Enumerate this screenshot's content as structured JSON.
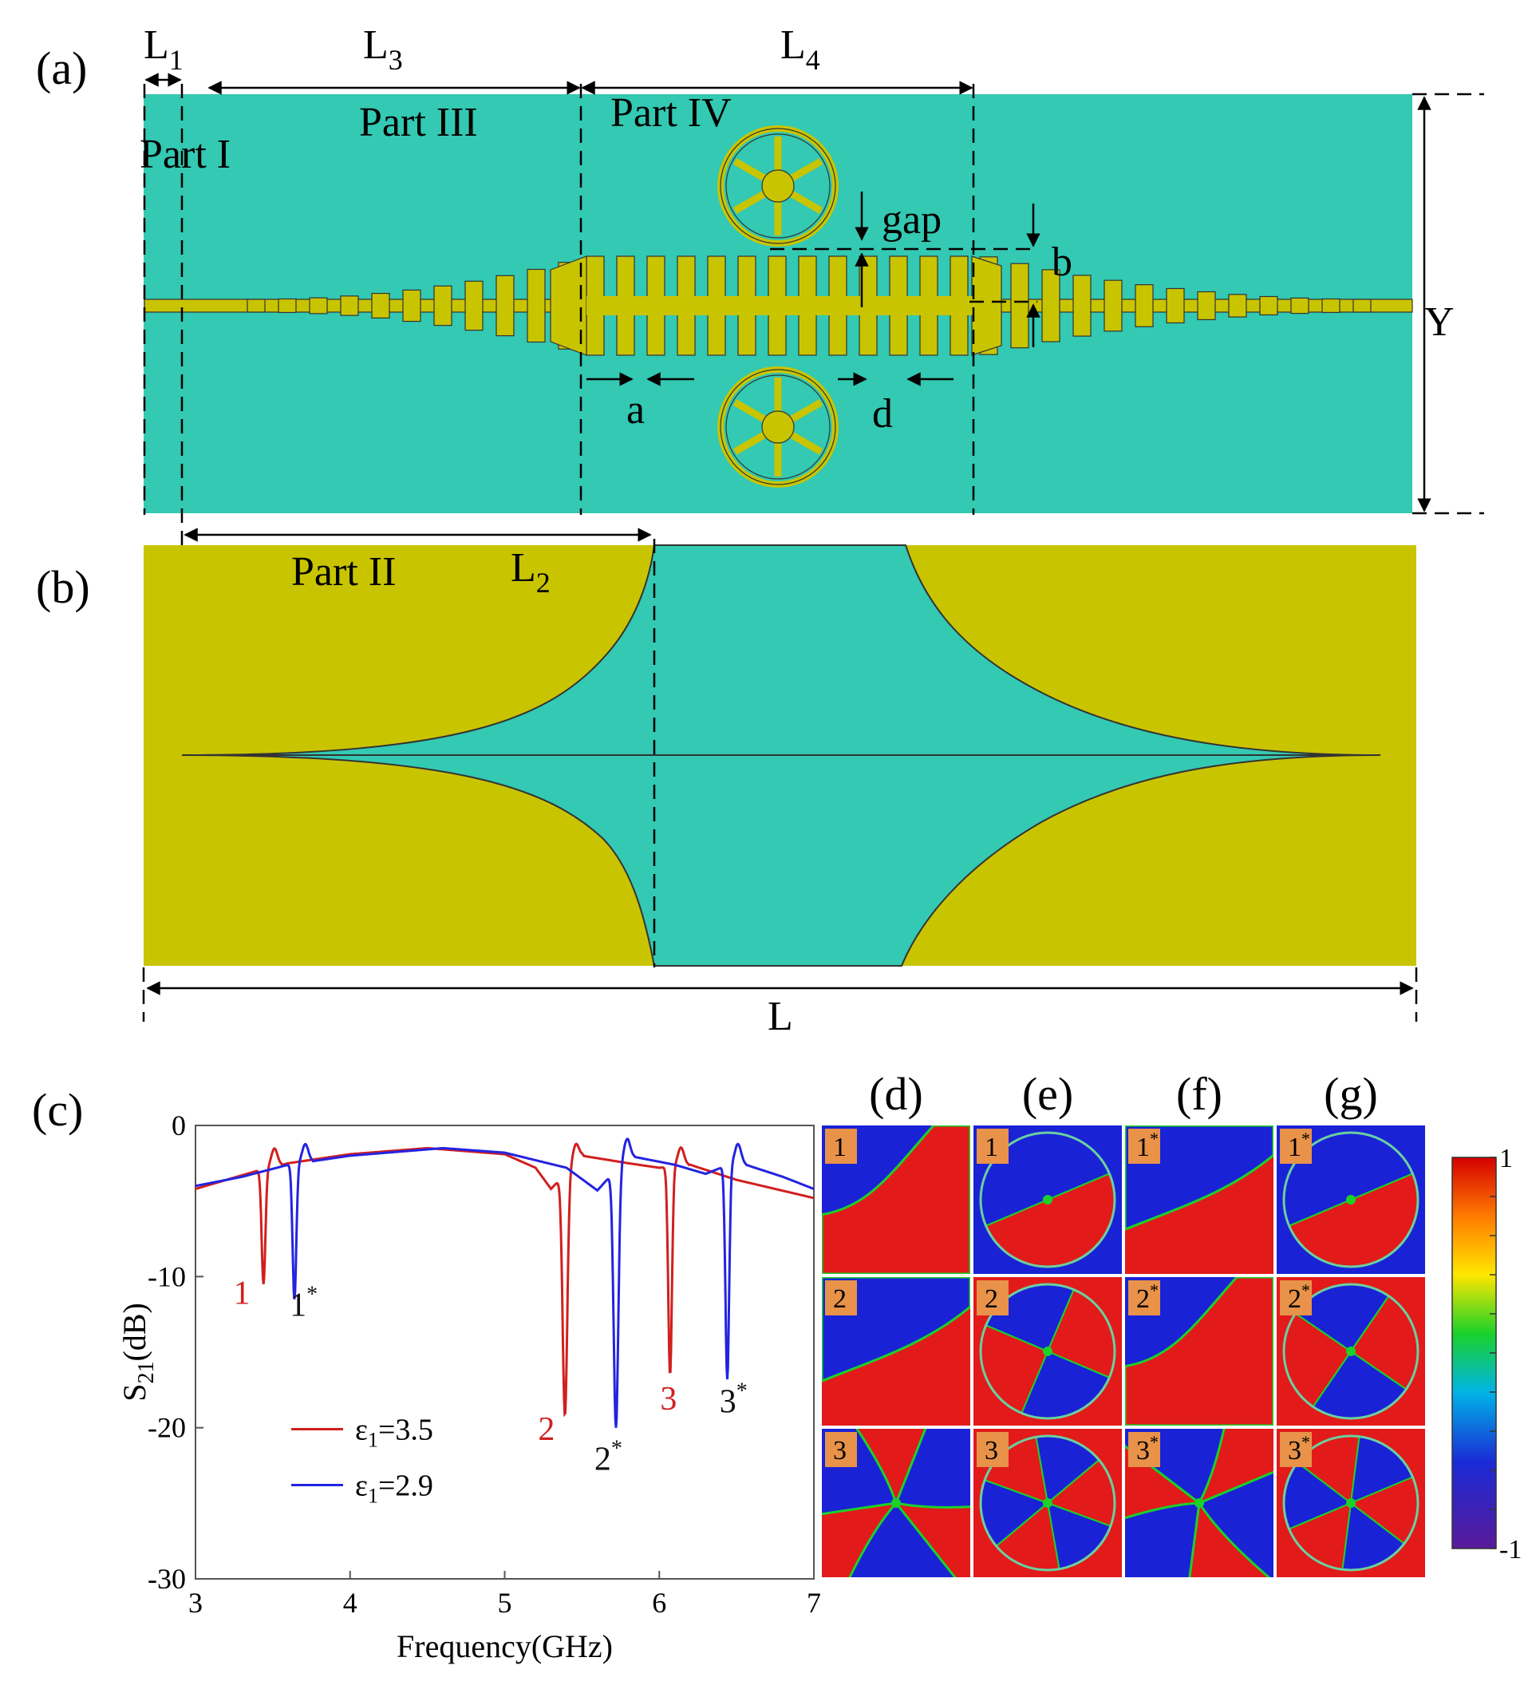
{
  "colors": {
    "teal": "#33c9b2",
    "yellow": "#c9c400",
    "red_curve": "#d11f1f",
    "blue_curve": "#2323e0",
    "field_red": "#e21a1a",
    "field_blue": "#1a22d6",
    "label_box": "#e8924a"
  },
  "panel_a": {
    "label": "(a)",
    "dims": {
      "L1": "L",
      "L1_sub": "1",
      "L3": "L",
      "L3_sub": "3",
      "L4": "L",
      "L4_sub": "4",
      "gap": "gap",
      "b": "b",
      "a": "a",
      "d": "d",
      "Y": "Y"
    },
    "parts": {
      "part1": "Part I",
      "part3": "Part III",
      "part4": "Part IV"
    }
  },
  "panel_b": {
    "label": "(b)",
    "part2": "Part II",
    "L2": "L",
    "L2_sub": "2",
    "L": "L"
  },
  "panel_c": {
    "label": "(c)"
  },
  "chart_data": {
    "type": "line",
    "xlabel": "Frequency(GHz)",
    "ylabel_main": "S",
    "ylabel_sub": "21",
    "ylabel_unit": "(dB)",
    "xlim": [
      3,
      7
    ],
    "ylim": [
      -30,
      0
    ],
    "xticks": [
      "3",
      "4",
      "5",
      "6",
      "7"
    ],
    "yticks": [
      "0",
      "-10",
      "-20",
      "-30"
    ],
    "series": [
      {
        "name": "ε1=3.5",
        "legend_main": "ε",
        "legend_sub": "1",
        "legend_val": "=3.5",
        "color": "#d11f1f",
        "baseline": [
          [
            3.0,
            -4.2
          ],
          [
            3.2,
            -3.6
          ],
          [
            3.4,
            -3.0
          ],
          [
            3.6,
            -2.5
          ],
          [
            4.0,
            -1.9
          ],
          [
            4.5,
            -1.5
          ],
          [
            5.0,
            -1.9
          ],
          [
            5.2,
            -2.8
          ],
          [
            5.3,
            -4.2
          ],
          [
            5.5,
            -2.0
          ],
          [
            5.8,
            -2.5
          ],
          [
            6.0,
            -2.8
          ],
          [
            6.2,
            -2.6
          ],
          [
            6.5,
            -3.6
          ],
          [
            7.0,
            -4.8
          ]
        ],
        "resonances": [
          {
            "f": 3.44,
            "depth": -10.5,
            "width": 0.012,
            "label": "1",
            "star": false
          },
          {
            "f": 5.39,
            "depth": -19.2,
            "width": 0.015,
            "label": "2",
            "star": false
          },
          {
            "f": 6.07,
            "depth": -16.5,
            "width": 0.012,
            "label": "3",
            "star": false
          }
        ]
      },
      {
        "name": "ε1=2.9",
        "legend_main": "ε",
        "legend_sub": "1",
        "legend_val": "=2.9",
        "color": "#2323e0",
        "baseline": [
          [
            3.0,
            -4.0
          ],
          [
            3.3,
            -3.4
          ],
          [
            3.6,
            -2.6
          ],
          [
            4.0,
            -2.0
          ],
          [
            4.6,
            -1.5
          ],
          [
            5.0,
            -1.8
          ],
          [
            5.4,
            -2.8
          ],
          [
            5.6,
            -4.3
          ],
          [
            5.8,
            -2.0
          ],
          [
            6.1,
            -2.6
          ],
          [
            6.3,
            -3.2
          ],
          [
            6.5,
            -2.4
          ],
          [
            6.8,
            -3.4
          ],
          [
            7.0,
            -4.2
          ]
        ],
        "resonances": [
          {
            "f": 3.64,
            "depth": -11.5,
            "width": 0.012,
            "label": "1",
            "star": true
          },
          {
            "f": 5.72,
            "depth": -20.0,
            "width": 0.015,
            "label": "2",
            "star": true
          },
          {
            "f": 6.44,
            "depth": -16.8,
            "width": 0.012,
            "label": "3",
            "star": true
          }
        ]
      }
    ]
  },
  "field_maps": {
    "columns": [
      "(d)",
      "(e)",
      "(f)",
      "(g)"
    ],
    "rows": [
      [
        {
          "t": "1",
          "s": ""
        },
        {
          "t": "1",
          "s": ""
        },
        {
          "t": "1",
          "s": "*"
        },
        {
          "t": "1",
          "s": "*"
        }
      ],
      [
        {
          "t": "2",
          "s": ""
        },
        {
          "t": "2",
          "s": ""
        },
        {
          "t": "2",
          "s": "*"
        },
        {
          "t": "2",
          "s": "*"
        }
      ],
      [
        {
          "t": "3",
          "s": ""
        },
        {
          "t": "3",
          "s": ""
        },
        {
          "t": "3",
          "s": "*"
        },
        {
          "t": "3",
          "s": "*"
        }
      ]
    ],
    "colorbar_max": "1",
    "colorbar_min": "-1"
  }
}
